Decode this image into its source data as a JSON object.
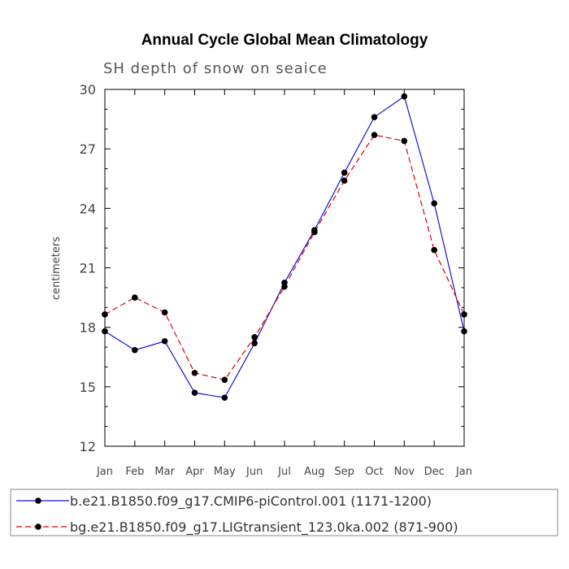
{
  "chart_data": {
    "type": "line",
    "title": "Annual Cycle Global Mean Climatology",
    "subtitle": "SH depth of snow on seaice",
    "xlabel": "",
    "ylabel": "centimeters",
    "ylim": [
      12,
      30
    ],
    "yticks": [
      "12",
      "15",
      "18",
      "21",
      "24",
      "27",
      "30"
    ],
    "categories": [
      "Jan",
      "Feb",
      "Mar",
      "Apr",
      "May",
      "Jun",
      "Jul",
      "Aug",
      "Sep",
      "Oct",
      "Nov",
      "Dec",
      "Jan"
    ],
    "series": [
      {
        "name": "b.e21.B1850.f09_g17.CMIP6-piControl.001 (1171-1200)",
        "values": [
          17.8,
          16.85,
          17.3,
          14.7,
          14.45,
          17.2,
          20.25,
          22.9,
          25.8,
          28.6,
          29.65,
          24.25,
          17.8
        ],
        "color": "#1414d2",
        "dash": "solid"
      },
      {
        "name": "bg.e21.B1850.f09_g17.LIGtransient_123.0ka.002 (871-900)",
        "values": [
          18.65,
          19.5,
          18.75,
          15.7,
          15.35,
          17.5,
          20.05,
          22.8,
          25.4,
          27.7,
          27.4,
          21.9,
          18.65
        ],
        "color": "#e00000",
        "dash": "dashed"
      }
    ],
    "grid": false,
    "legend_position": "bottom"
  }
}
